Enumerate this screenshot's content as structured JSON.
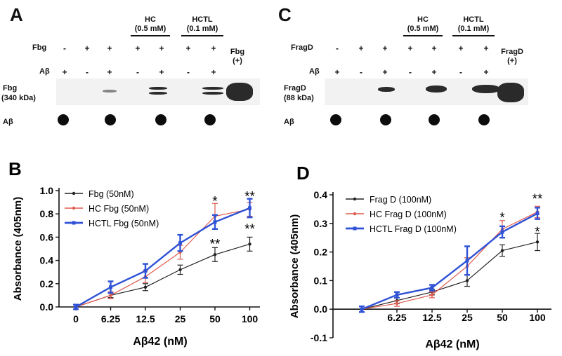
{
  "panels": {
    "A": {
      "letter": "A",
      "row1_label": "Fbg",
      "row2_label": "Aβ",
      "row1_signs": [
        "-",
        "+",
        "+",
        "+",
        "+",
        "+",
        "+"
      ],
      "row2_signs": [
        "+",
        "-",
        "+",
        "-",
        "+",
        "-",
        "+"
      ],
      "group1": {
        "name": "HC",
        "conc": "(0.5 mM)"
      },
      "group2": {
        "name": "HCTL",
        "conc": "(0.1 mM)"
      },
      "control": {
        "name": "Fbg",
        "tag": "(+)"
      },
      "blot_label": "Fbg",
      "blot_mw": "(340 kDa)",
      "dot_label": "Aβ"
    },
    "C": {
      "letter": "C",
      "row1_label": "FragD",
      "row2_label": "Aβ",
      "row1_signs": [
        "-",
        "+",
        "+",
        "+",
        "+",
        "+",
        "+"
      ],
      "row2_signs": [
        "+",
        "-",
        "+",
        "-",
        "+",
        "-",
        "+"
      ],
      "group1": {
        "name": "HC",
        "conc": "(0.5 mM)"
      },
      "group2": {
        "name": "HCTL",
        "conc": "(0.1 mM)"
      },
      "control": {
        "name": "FragD",
        "tag": "(+)"
      },
      "blot_label": "FragD",
      "blot_mw": "(88 kDa)",
      "dot_label": "Aβ"
    }
  },
  "chart_data": [
    {
      "letter": "B",
      "type": "line",
      "title": "",
      "xlabel": "Aβ42 (nM)",
      "ylabel": "Absorbance (405nm)",
      "categories": [
        "0",
        "6.25",
        "12.5",
        "25",
        "50",
        "100"
      ],
      "ylim": [
        0,
        1.0
      ],
      "yticks": [
        "0.0",
        "0.2",
        "0.4",
        "0.6",
        "0.8",
        "1.0"
      ],
      "series": [
        {
          "name": "Fbg (50nM)",
          "color": "#222222",
          "values": [
            0.0,
            0.1,
            0.17,
            0.32,
            0.45,
            0.54
          ],
          "errors": [
            0.02,
            0.02,
            0.03,
            0.04,
            0.06,
            0.06
          ]
        },
        {
          "name": "HC Fbg (50nM)",
          "color": "#e05a4e",
          "values": [
            0.0,
            0.1,
            0.26,
            0.47,
            0.78,
            0.84
          ],
          "errors": [
            0.02,
            0.03,
            0.05,
            0.06,
            0.11,
            0.06
          ]
        },
        {
          "name": "HCTL Fbg (50nM)",
          "color": "#2f52d6",
          "values": [
            0.0,
            0.17,
            0.31,
            0.55,
            0.73,
            0.85
          ],
          "errors": [
            0.02,
            0.05,
            0.06,
            0.07,
            0.06,
            0.08
          ]
        }
      ],
      "annotations": [
        {
          "category": "50",
          "value": 0.92,
          "text": "*"
        },
        {
          "category": "50",
          "value": 0.55,
          "text": "**"
        },
        {
          "category": "100",
          "value": 0.96,
          "text": "**"
        },
        {
          "category": "100",
          "value": 0.68,
          "text": "**"
        }
      ]
    },
    {
      "letter": "D",
      "type": "line",
      "title": "",
      "xlabel": "Aβ42 (nM)",
      "ylabel": "Absorbance (405nm)",
      "categories": [
        "",
        "6.25",
        "12.5",
        "25",
        "50",
        "100"
      ],
      "ylim": [
        -0.1,
        0.4
      ],
      "yticks": [
        "-0.1",
        "0.0",
        "0.1",
        "0.2",
        "0.3",
        "0.4"
      ],
      "series": [
        {
          "name": "Frag D (100nM)",
          "color": "#222222",
          "values": [
            0.0,
            0.03,
            0.06,
            0.1,
            0.205,
            0.235
          ],
          "errors": [
            0.01,
            0.01,
            0.01,
            0.02,
            0.02,
            0.03
          ]
        },
        {
          "name": "HC Frag D (100nM)",
          "color": "#e05a4e",
          "values": [
            0.0,
            0.02,
            0.05,
            0.15,
            0.28,
            0.34
          ],
          "errors": [
            0.01,
            0.01,
            0.01,
            0.03,
            0.03,
            0.02
          ]
        },
        {
          "name": "HCTL Frag D (100nM)",
          "color": "#2f52d6",
          "values": [
            0.0,
            0.05,
            0.075,
            0.17,
            0.27,
            0.335
          ],
          "errors": [
            0.01,
            0.01,
            0.01,
            0.05,
            0.02,
            0.02
          ]
        }
      ],
      "annotations": [
        {
          "category": "50",
          "value": 0.325,
          "text": "*"
        },
        {
          "category": "100",
          "value": 0.39,
          "text": "**"
        },
        {
          "category": "100",
          "value": 0.275,
          "text": "*"
        }
      ]
    }
  ]
}
